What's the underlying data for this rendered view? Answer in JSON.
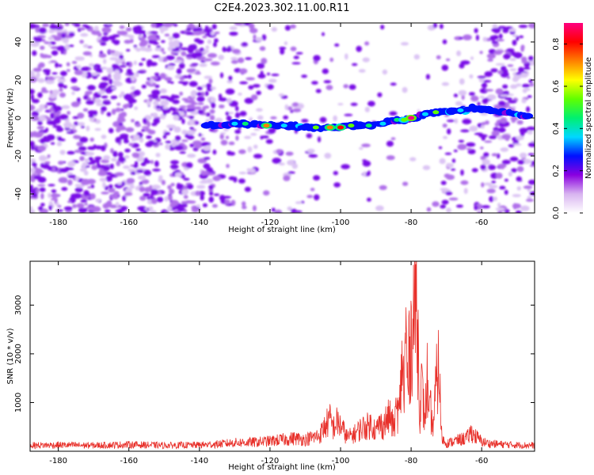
{
  "title": "C2E4.2023.302.11.00.R11",
  "chart_data": [
    {
      "type": "heatmap",
      "xlabel": "Height of straight line (km)",
      "ylabel": "Frequency (Hz)",
      "xlim": [
        -188,
        -45
      ],
      "ylim": [
        -50,
        50
      ],
      "xticks": [
        -180,
        -160,
        -140,
        -120,
        -100,
        -80,
        -60
      ],
      "yticks": [
        -40,
        -20,
        0,
        20,
        40
      ],
      "colorbar": {
        "label": "Normalized spectral amplitude",
        "range": [
          0,
          0.9
        ],
        "ticks": [
          0.0,
          0.2,
          0.4,
          0.6,
          0.8
        ],
        "colors": [
          "#ffffff",
          "#d8b4f0",
          "#8a00e0",
          "#0010ff",
          "#00d8ff",
          "#00f070",
          "#60ff00",
          "#ffff00",
          "#ff8000",
          "#ff0000",
          "#ff0080"
        ]
      },
      "signal_track": [
        {
          "x": -138,
          "y": -4,
          "amp": 0.25
        },
        {
          "x": -130,
          "y": -3,
          "amp": 0.35
        },
        {
          "x": -127,
          "y": -3,
          "amp": 0.45
        },
        {
          "x": -121,
          "y": -4,
          "amp": 0.75
        },
        {
          "x": -116,
          "y": -4,
          "amp": 0.4
        },
        {
          "x": -107,
          "y": -5,
          "amp": 0.5
        },
        {
          "x": -103,
          "y": -5,
          "amp": 0.7
        },
        {
          "x": -100,
          "y": -5,
          "amp": 0.8
        },
        {
          "x": -97,
          "y": -4,
          "amp": 0.5
        },
        {
          "x": -92,
          "y": -4,
          "amp": 0.45
        },
        {
          "x": -88,
          "y": -3,
          "amp": 0.4
        },
        {
          "x": -84,
          "y": -1,
          "amp": 0.45
        },
        {
          "x": -82,
          "y": -1,
          "amp": 0.55
        },
        {
          "x": -80,
          "y": 0,
          "amp": 0.9
        },
        {
          "x": -76,
          "y": 2,
          "amp": 0.4
        },
        {
          "x": -73,
          "y": 3,
          "amp": 0.5
        },
        {
          "x": -66,
          "y": 4,
          "amp": 0.35
        },
        {
          "x": -62,
          "y": 5,
          "amp": 0.3
        },
        {
          "x": -47,
          "y": 1,
          "amp": 0.25
        }
      ]
    },
    {
      "type": "line",
      "xlabel": "Height of straight line (km)",
      "ylabel": "SNR (10 * v/v)",
      "xlim": [
        -188,
        -45
      ],
      "ylim": [
        0,
        3900
      ],
      "xticks": [
        -180,
        -160,
        -140,
        -120,
        -100,
        -80,
        -60
      ],
      "yticks": [
        1000,
        2000,
        3000
      ],
      "color": "#e8302a",
      "series": [
        {
          "name": "",
          "x": [
            -188,
            -180,
            -170,
            -160,
            -150,
            -140,
            -135,
            -130,
            -125,
            -120,
            -116,
            -113,
            -110,
            -106,
            -104,
            -103,
            -102,
            -101,
            -100,
            -99,
            -98,
            -96,
            -94,
            -92,
            -91,
            -90,
            -89,
            -88,
            -87,
            -86,
            -85,
            -84.5,
            -84,
            -83.5,
            -83,
            -82.5,
            -82,
            -81.5,
            -81,
            -80.5,
            -80,
            -79.5,
            -79,
            -78.5,
            -78,
            -77.5,
            -77,
            -76.5,
            -76,
            -75.5,
            -75,
            -74.5,
            -74,
            -73.5,
            -73,
            -72.5,
            -72,
            -71.5,
            -71,
            -70.5,
            -70,
            -68,
            -66,
            -64,
            -63,
            -62,
            -60,
            -58,
            -55,
            -50,
            -45
          ],
          "values": [
            150,
            160,
            150,
            170,
            150,
            160,
            180,
            220,
            230,
            260,
            300,
            330,
            300,
            400,
            700,
            800,
            600,
            750,
            650,
            500,
            350,
            450,
            600,
            650,
            700,
            500,
            700,
            650,
            800,
            900,
            600,
            850,
            1100,
            900,
            1450,
            2600,
            1300,
            3200,
            1600,
            2500,
            2900,
            3300,
            3750,
            3850,
            2700,
            1000,
            1700,
            1100,
            800,
            2050,
            700,
            1100,
            600,
            900,
            1600,
            2000,
            2200,
            500,
            300,
            250,
            200,
            250,
            300,
            350,
            500,
            400,
            250,
            200,
            180,
            160,
            150
          ]
        }
      ]
    }
  ]
}
